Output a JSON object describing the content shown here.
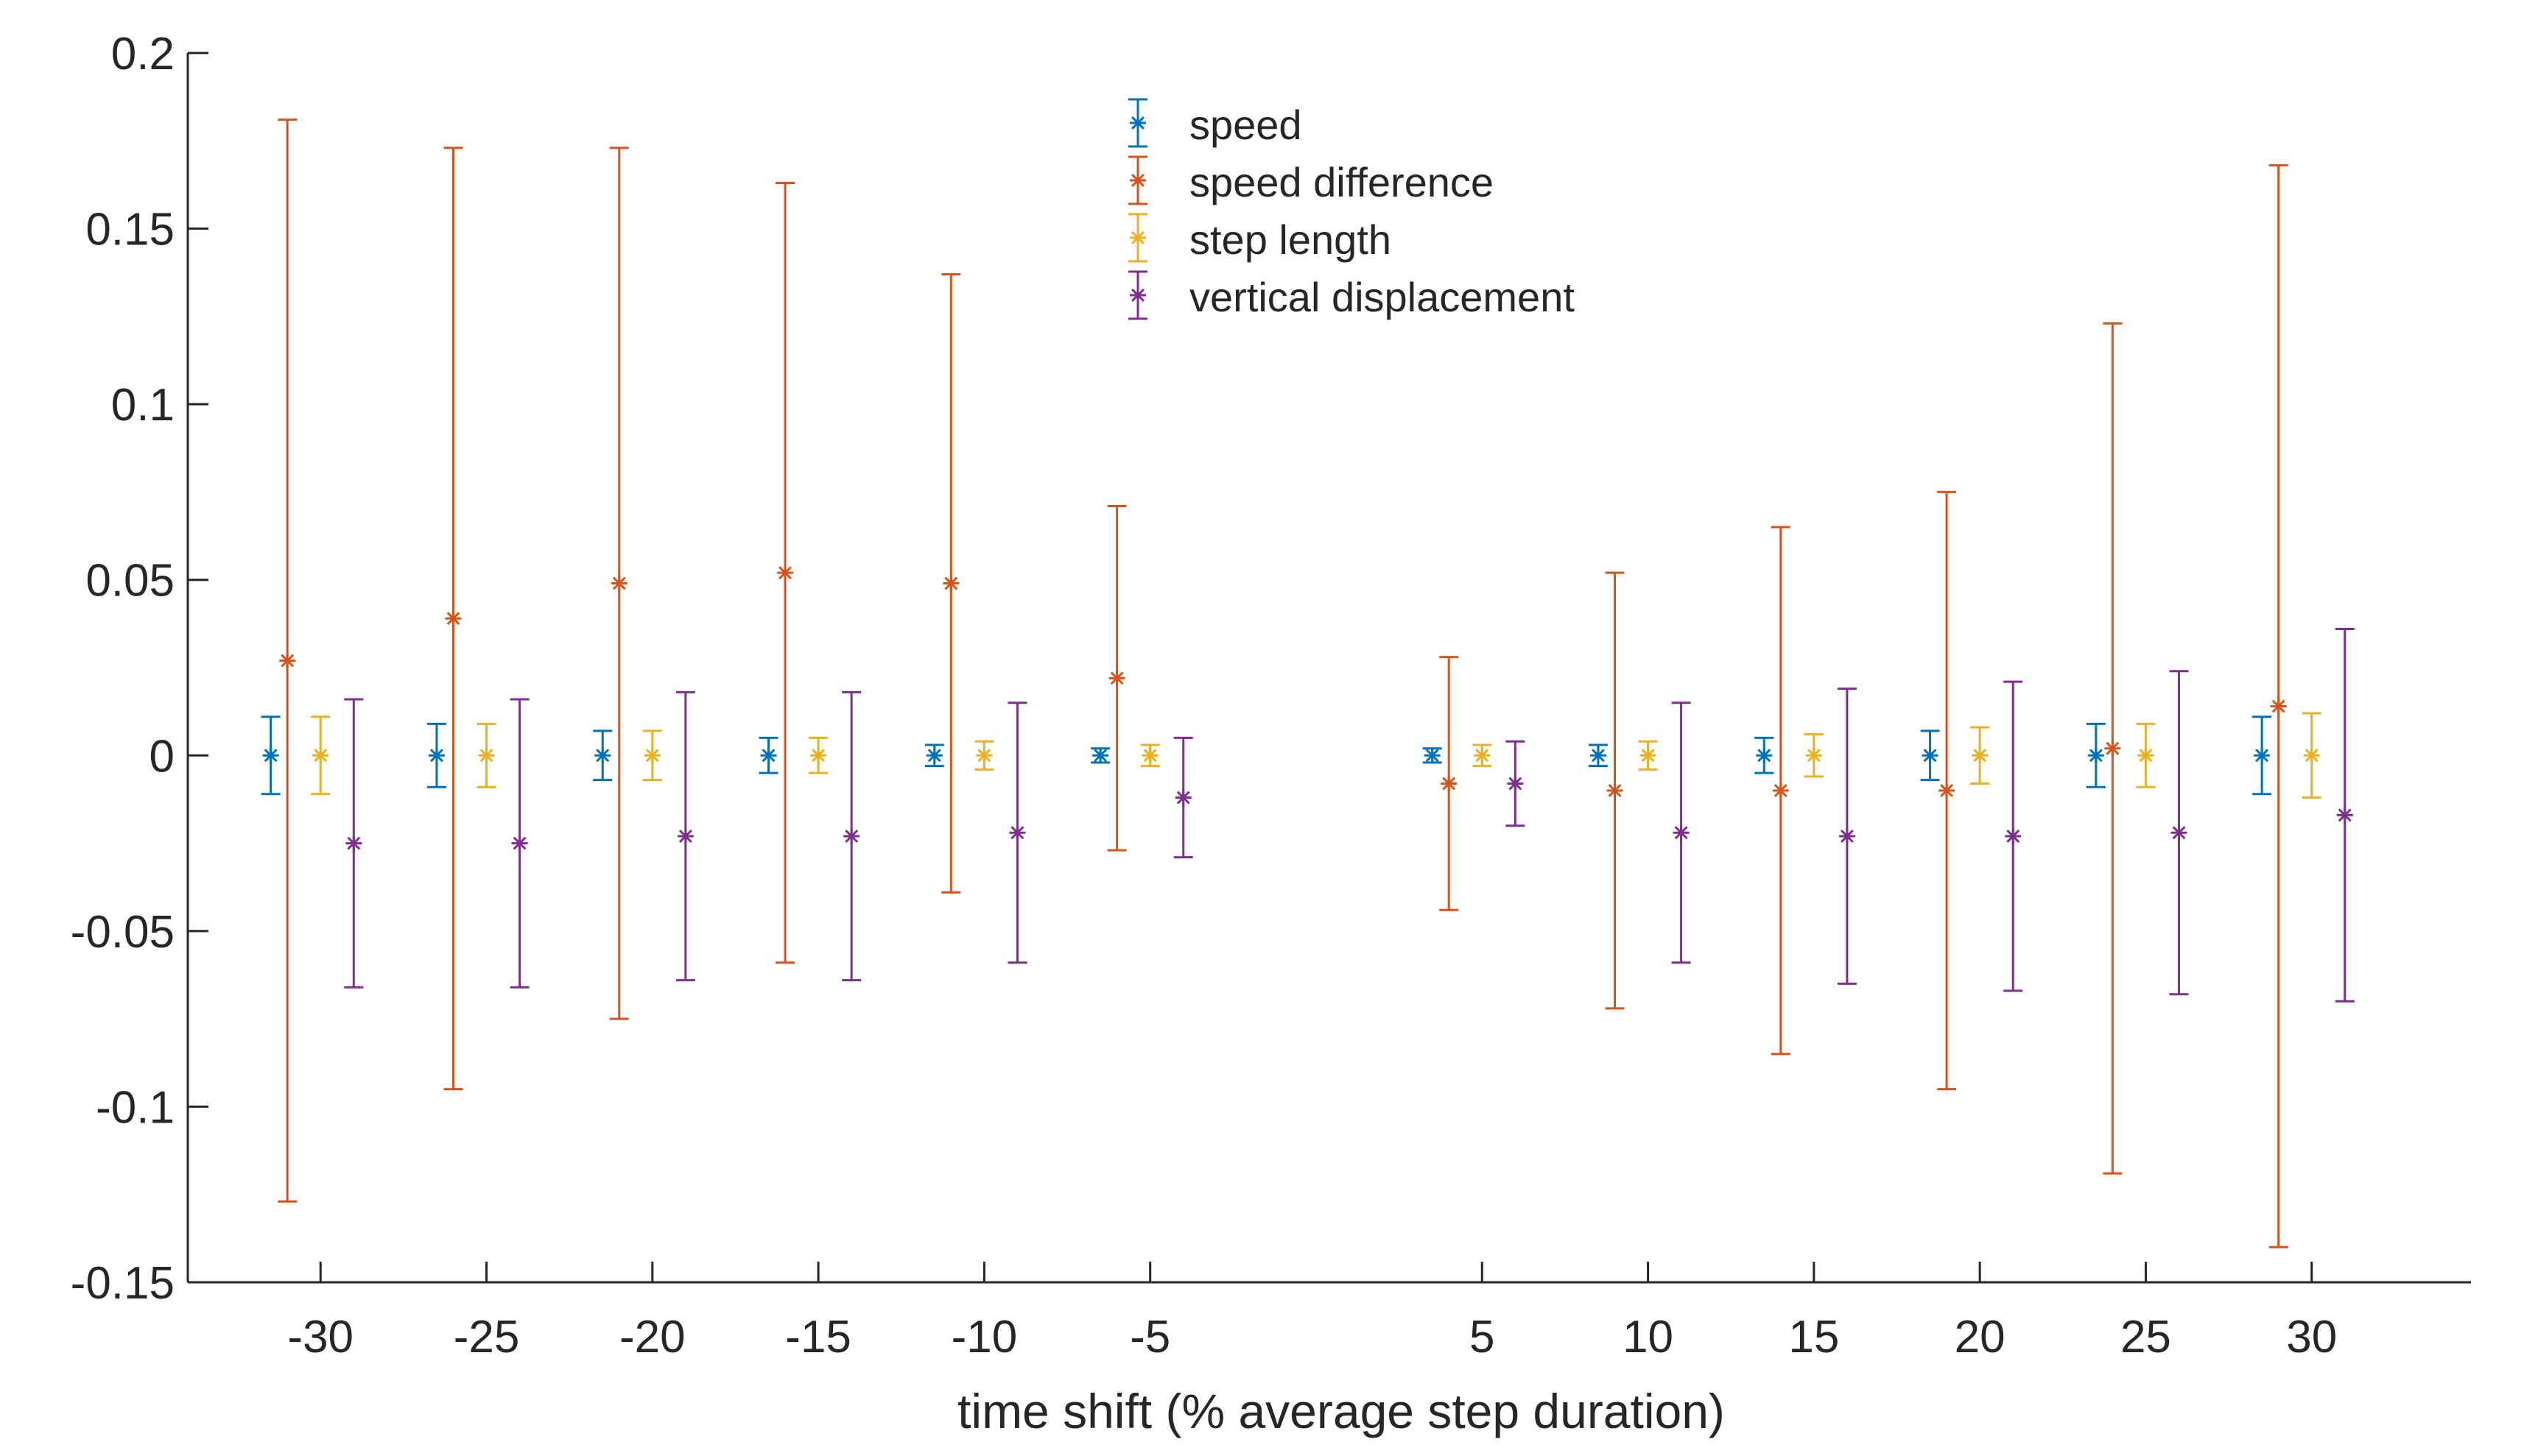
{
  "chart_data": {
    "type": "scatter",
    "title": "",
    "xlabel": "time shift (% average step duration)",
    "ylabel": "",
    "xlim": [
      -34,
      34.8
    ],
    "ylim": [
      -0.15,
      0.2
    ],
    "xticks": [
      -30,
      -25,
      -20,
      -15,
      -10,
      -5,
      5,
      10,
      15,
      20,
      25,
      30
    ],
    "xtick_labels": [
      "-30",
      "-25",
      "-20",
      "-15",
      "-10",
      "-5",
      "5",
      "10",
      "15",
      "20",
      "25",
      "30"
    ],
    "yticks": [
      -0.15,
      -0.1,
      -0.05,
      0,
      0.05,
      0.1,
      0.15,
      0.2
    ],
    "ytick_labels": [
      "-0.15",
      "-0.1",
      "-0.05",
      "0",
      "0.05",
      "0.1",
      "0.15",
      "0.2"
    ],
    "grid": false,
    "legend_position": "top-center",
    "marker": "asterisk with error bars",
    "series": [
      {
        "name": "speed",
        "color": "#0072BD",
        "x": [
          -31.5,
          -26.5,
          -21.5,
          -16.5,
          -11.5,
          -6.5,
          3.5,
          8.5,
          13.5,
          18.5,
          23.5,
          28.5
        ],
        "y": [
          0,
          0,
          0,
          0,
          0,
          0,
          0,
          0,
          0,
          0,
          0,
          0
        ],
        "err": [
          0.011,
          0.009,
          0.007,
          0.005,
          0.003,
          0.002,
          0.002,
          0.003,
          0.005,
          0.007,
          0.009,
          0.011
        ]
      },
      {
        "name": "speed difference",
        "color": "#D95319",
        "x": [
          -31,
          -26,
          -21,
          -16,
          -11,
          -6,
          4,
          9,
          14,
          19,
          24,
          29
        ],
        "y": [
          0.027,
          0.039,
          0.049,
          0.052,
          0.049,
          0.022,
          -0.008,
          -0.01,
          -0.01,
          -0.01,
          0.002,
          0.014
        ],
        "err": [
          0.154,
          0.134,
          0.124,
          0.111,
          0.088,
          0.049,
          0.036,
          0.062,
          0.075,
          0.085,
          0.121,
          0.154
        ]
      },
      {
        "name": "step length",
        "color": "#EDB120",
        "x": [
          -30,
          -25,
          -20,
          -15,
          -10,
          -5,
          5,
          10,
          15,
          20,
          25,
          30
        ],
        "y": [
          0,
          0,
          0,
          0,
          0,
          0,
          0,
          0,
          0,
          0,
          0,
          0
        ],
        "err": [
          0.011,
          0.009,
          0.007,
          0.005,
          0.004,
          0.003,
          0.003,
          0.004,
          0.006,
          0.008,
          0.009,
          0.012
        ]
      },
      {
        "name": "vertical displacement",
        "color": "#7E2F8E",
        "x": [
          -29,
          -24,
          -19,
          -14,
          -9,
          -4,
          6,
          11,
          16,
          21,
          26,
          31
        ],
        "y": [
          -0.025,
          -0.025,
          -0.023,
          -0.023,
          -0.022,
          -0.012,
          -0.008,
          -0.022,
          -0.023,
          -0.023,
          -0.022,
          -0.017
        ],
        "err": [
          0.041,
          0.041,
          0.041,
          0.041,
          0.037,
          0.017,
          0.012,
          0.037,
          0.042,
          0.044,
          0.046,
          0.053
        ]
      }
    ]
  }
}
